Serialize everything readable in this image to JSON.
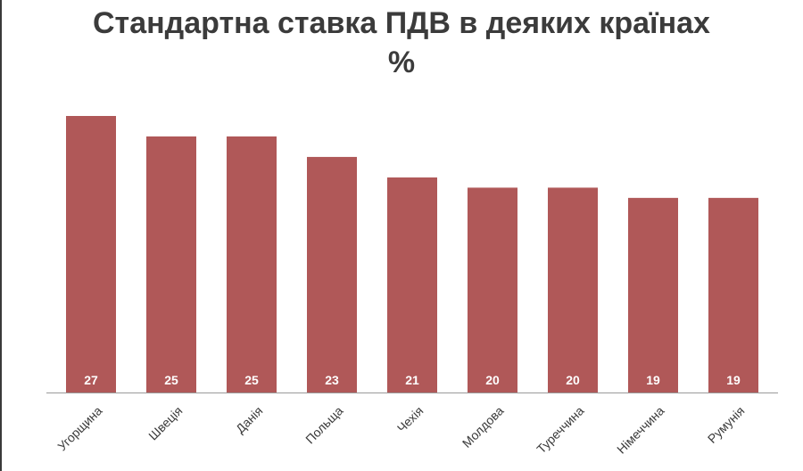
{
  "title": "Стандартна ставка ПДВ в деяких країнах",
  "subtitle": "%",
  "chart_data": {
    "type": "bar",
    "title": "Стандартна ставка ПДВ в деяких країнах",
    "subtitle": "%",
    "categories": [
      "Угорщина",
      "Швеція",
      "Данія",
      "Польща",
      "Чехія",
      "Молдова",
      "Туреччина",
      "Німеччина",
      "Румунія"
    ],
    "values": [
      27,
      25,
      25,
      23,
      21,
      20,
      20,
      19,
      19
    ],
    "xlabel": "",
    "ylabel": "",
    "ylim": [
      0,
      27
    ],
    "grid": false,
    "colors": {
      "bar": "#b05858",
      "text": "#3b3b3b"
    }
  }
}
